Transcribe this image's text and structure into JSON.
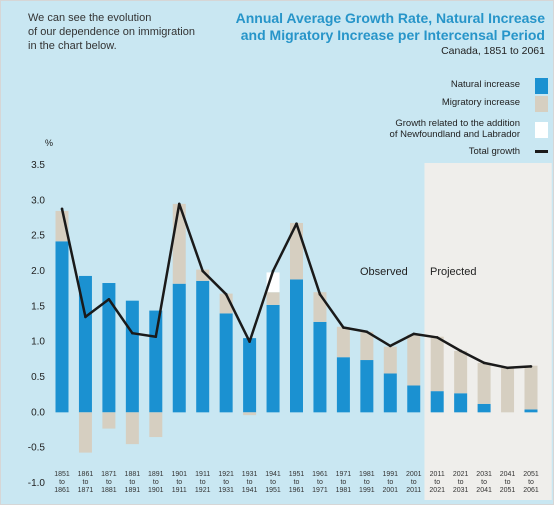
{
  "intro": {
    "lines": [
      "We can see the evolution",
      "of our dependence on immigration",
      "in the chart below."
    ]
  },
  "chart_data": {
    "type": "bar",
    "title_lines": [
      "Annual Average Growth Rate, Natural Increase",
      "and Migratory Increase per Intercensal Period"
    ],
    "subtitle": "Canada, 1851 to 2061",
    "ylabel": "%",
    "ylim": [
      -1.0,
      3.5
    ],
    "yticks": [
      "3.5",
      "3.0",
      "2.5",
      "2.0",
      "1.5",
      "1.0",
      "0.5",
      "0.0",
      "-0.5",
      "-1.0"
    ],
    "categories": [
      [
        "1851",
        "to",
        "1861"
      ],
      [
        "1861",
        "to",
        "1871"
      ],
      [
        "1871",
        "to",
        "1881"
      ],
      [
        "1881",
        "to",
        "1891"
      ],
      [
        "1891",
        "to",
        "1901"
      ],
      [
        "1901",
        "to",
        "1911"
      ],
      [
        "1911",
        "to",
        "1921"
      ],
      [
        "1921",
        "to",
        "1931"
      ],
      [
        "1931",
        "to",
        "1941"
      ],
      [
        "1941",
        "to",
        "1951"
      ],
      [
        "1951",
        "to",
        "1961"
      ],
      [
        "1961",
        "to",
        "1971"
      ],
      [
        "1971",
        "to",
        "1981"
      ],
      [
        "1981",
        "to",
        "1991"
      ],
      [
        "1991",
        "to",
        "2001"
      ],
      [
        "2001",
        "to",
        "2011"
      ],
      [
        "2011",
        "to",
        "2021"
      ],
      [
        "2021",
        "to",
        "2031"
      ],
      [
        "2031",
        "to",
        "2041"
      ],
      [
        "2041",
        "to",
        "2051"
      ],
      [
        "2051",
        "to",
        "2061"
      ]
    ],
    "series": [
      {
        "name": "Natural increase",
        "color": "#1b91d1",
        "values": [
          2.42,
          1.93,
          1.83,
          1.58,
          1.44,
          1.82,
          1.86,
          1.4,
          1.05,
          1.52,
          1.88,
          1.28,
          0.78,
          0.74,
          0.55,
          0.38,
          0.3,
          0.27,
          0.12,
          0.0,
          0.04
        ]
      },
      {
        "name": "Migratory increase",
        "color": "#d6cfc1",
        "values": [
          0.43,
          -0.57,
          -0.23,
          -0.45,
          -0.35,
          1.13,
          0.16,
          0.28,
          -0.04,
          0.18,
          0.8,
          0.42,
          0.43,
          0.4,
          0.38,
          0.72,
          0.77,
          0.6,
          0.58,
          0.63,
          0.62
        ]
      },
      {
        "name": "Growth related to the addition of Newfoundland and Labrador",
        "color": "#ffffff",
        "values": [
          0,
          0,
          0,
          0,
          0,
          0,
          0,
          0,
          0,
          0.28,
          0,
          0,
          0,
          0,
          0,
          0,
          0,
          0,
          0,
          0,
          0
        ]
      },
      {
        "name": "Total growth",
        "type": "line",
        "color": "#1a1a1a",
        "values": [
          2.88,
          1.35,
          1.6,
          1.12,
          1.07,
          2.95,
          2.0,
          1.67,
          1.0,
          2.0,
          2.67,
          1.67,
          1.2,
          1.14,
          0.94,
          1.11,
          1.06,
          0.87,
          0.7,
          0.63,
          0.65
        ]
      }
    ],
    "legend_lines": [
      [
        "Natural increase"
      ],
      [
        "Migratory increase"
      ],
      [
        "Growth related to the addition",
        "of Newfoundland and Labrador"
      ],
      [
        "Total growth"
      ]
    ],
    "annotations": {
      "observed": "Observed",
      "projected": "Projected"
    },
    "projected_start_index": 16,
    "legend_position": "top-right",
    "grid": false
  },
  "colors": {
    "panel_bg": "#c9e7f2",
    "projected_bg": "#efeeeb",
    "title": "#2795c9"
  }
}
